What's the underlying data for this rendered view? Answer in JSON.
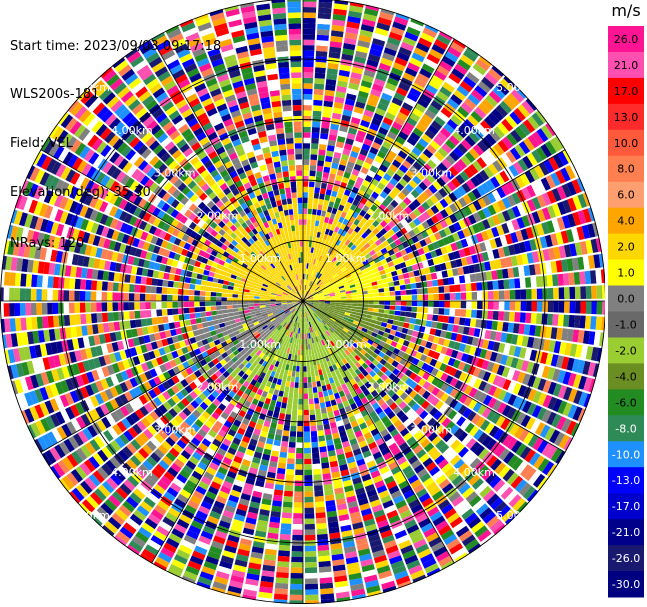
{
  "info": {
    "start_time": "Start time: 2023/09/03 09:17:18",
    "station": "WLS200s-181",
    "field": "Field: VEL",
    "elevation": "Elevation(deg): 35.30",
    "nrays": "NRays: 120"
  },
  "chart_data": {
    "type": "heatmap",
    "projection": "polar-ppi",
    "field": "VEL",
    "unit": "m/s",
    "nrays": 120,
    "elevation_deg": 35.3,
    "range_rings": [
      {
        "label": "1.00km",
        "r": 1.0
      },
      {
        "label": "2.00km",
        "r": 2.0
      },
      {
        "label": "3.00km",
        "r": 3.0
      },
      {
        "label": "4.00km",
        "r": 4.0
      },
      {
        "label": "5.00km",
        "r": 5.0
      }
    ],
    "colorbar": {
      "unit_label": "m/s",
      "ticks": [
        "26.0",
        "21.0",
        "17.0",
        "13.0",
        "10.0",
        "8.0",
        "6.0",
        "4.0",
        "2.0",
        "1.0",
        "0.0",
        "-1.0",
        "-2.0",
        "-4.0",
        "-6.0",
        "-8.0",
        "-10.0",
        "-13.0",
        "-17.0",
        "-21.0",
        "-26.0",
        "-30.0"
      ],
      "bands": [
        {
          "from": 26,
          "to": 30,
          "color": "#ff1493"
        },
        {
          "from": 21,
          "to": 26,
          "color": "#ff4fb0"
        },
        {
          "from": 17,
          "to": 21,
          "color": "#ff0000"
        },
        {
          "from": 13,
          "to": 17,
          "color": "#ff2a2a"
        },
        {
          "from": 10,
          "to": 13,
          "color": "#ff5a3c"
        },
        {
          "from": 8,
          "to": 10,
          "color": "#ff7f50"
        },
        {
          "from": 6,
          "to": 8,
          "color": "#ff9f6f"
        },
        {
          "from": 4,
          "to": 6,
          "color": "#ffa500"
        },
        {
          "from": 2,
          "to": 4,
          "color": "#ffd700"
        },
        {
          "from": 1,
          "to": 2,
          "color": "#ffff00"
        },
        {
          "from": 0,
          "to": 1,
          "color": "#808080"
        },
        {
          "from": -1,
          "to": 0,
          "color": "#696969"
        },
        {
          "from": -2,
          "to": -1,
          "color": "#9acd32"
        },
        {
          "from": -4,
          "to": -2,
          "color": "#6b8e23"
        },
        {
          "from": -6,
          "to": -4,
          "color": "#228b22"
        },
        {
          "from": -8,
          "to": -6,
          "color": "#2e8b57"
        },
        {
          "from": -10,
          "to": -8,
          "color": "#1e90ff"
        },
        {
          "from": -13,
          "to": -10,
          "color": "#0000ff"
        },
        {
          "from": -17,
          "to": -13,
          "color": "#0000cd"
        },
        {
          "from": -21,
          "to": -17,
          "color": "#00008b"
        },
        {
          "from": -26,
          "to": -21,
          "color": "#191970"
        },
        {
          "from": -30,
          "to": -26,
          "color": "#000080"
        }
      ]
    },
    "inner_pattern": [
      {
        "az_from": 270,
        "az_to": 360,
        "velocity": 3.0
      },
      {
        "az_from": 0,
        "az_to": 60,
        "velocity": 2.5
      },
      {
        "az_from": 60,
        "az_to": 90,
        "velocity": 1.5
      },
      {
        "az_from": 90,
        "az_to": 135,
        "velocity": -3.0
      },
      {
        "az_from": 135,
        "az_to": 225,
        "velocity": -1.5
      },
      {
        "az_from": 225,
        "az_to": 270,
        "velocity": 0.5
      }
    ],
    "inner_range_km": 1.0
  }
}
